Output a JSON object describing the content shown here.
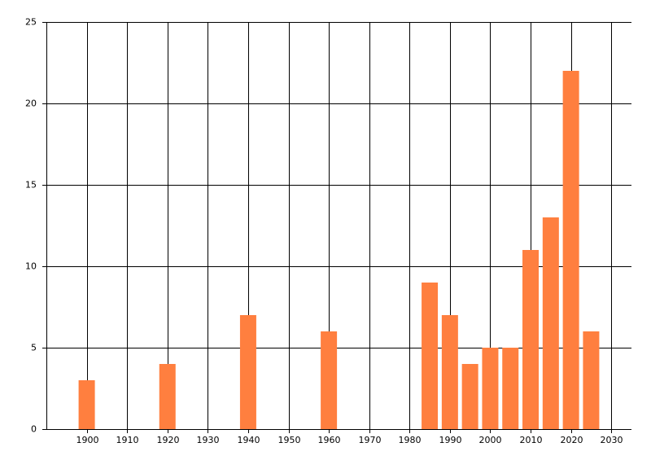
{
  "chart_data": {
    "type": "bar",
    "x": [
      1900,
      1920,
      1940,
      1960,
      1985,
      1990,
      1995,
      2000,
      2005,
      2010,
      2015,
      2020,
      2025
    ],
    "values": [
      3,
      4,
      7,
      6,
      9,
      7,
      4,
      5,
      5,
      11,
      13,
      22,
      6
    ],
    "color": "#ff7f3f",
    "xlim": [
      1890,
      2035
    ],
    "xticks": [
      1900,
      1910,
      1920,
      1930,
      1940,
      1950,
      1960,
      1970,
      1980,
      1990,
      2000,
      2010,
      2020,
      2030
    ],
    "ylim": [
      0,
      25
    ],
    "yticks": [
      0,
      5,
      10,
      15,
      20,
      25
    ],
    "grid": true
  }
}
